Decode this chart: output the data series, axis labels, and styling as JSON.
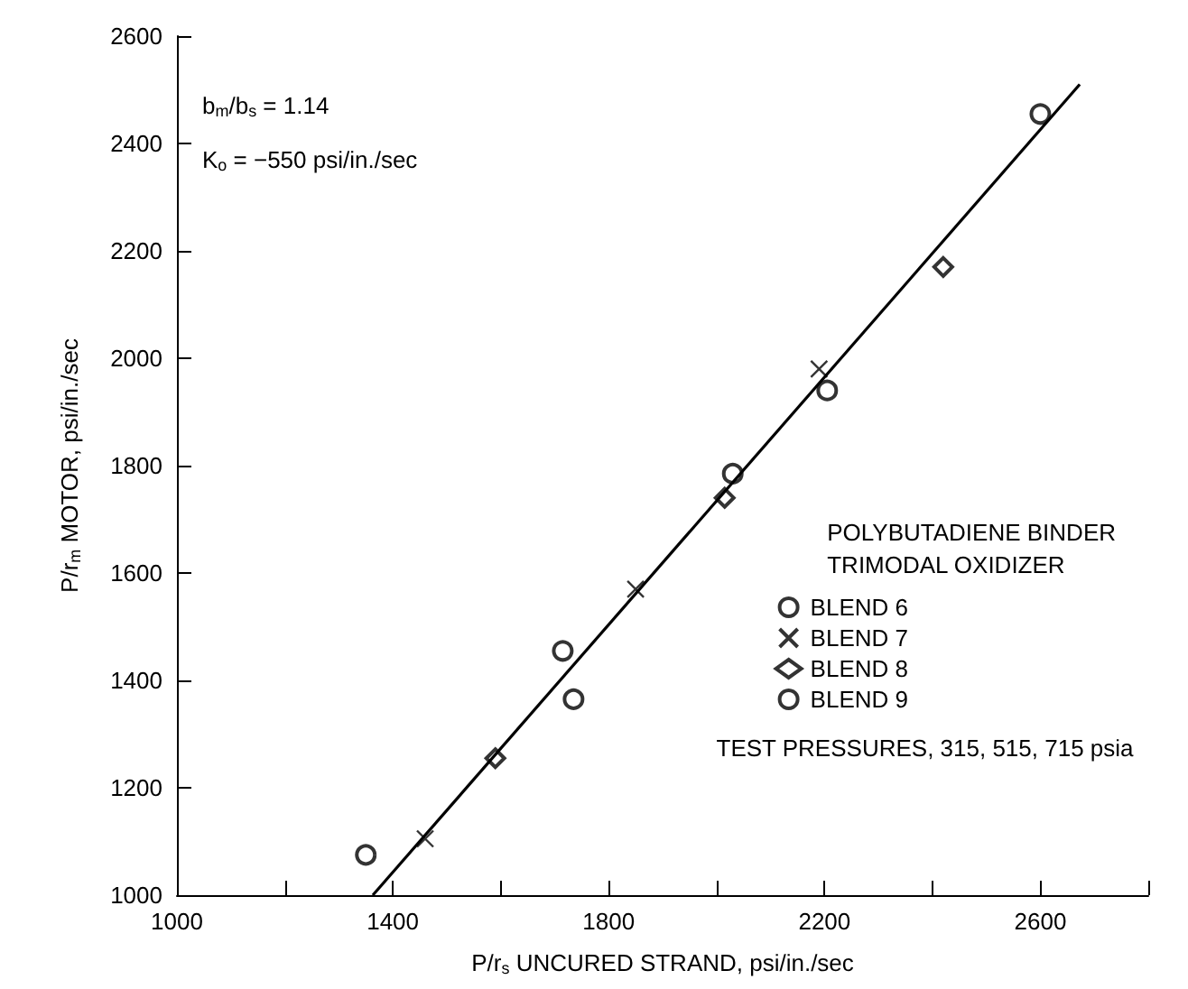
{
  "chart_data": {
    "type": "scatter",
    "xlabel": "P/r$_{s}$ UNCURED STRAND, psi/in./sec",
    "ylabel": "P/r$_{m}$ MOTOR, psi/in./sec",
    "legend_title": "POLYBUTADIENE BINDER\nTRIMODAL OXIDIZER",
    "annotations": [
      "b$_{m}$/b$_{s}$ = 1.14",
      "K$_{o}$ = −550 psi/in./sec",
      "TEST PRESSURES, 315, 515, 715 psia"
    ],
    "xlim": [
      1000,
      2800
    ],
    "xticks": [
      1000,
      {
        "value": 1200,
        "label": null
      },
      1400,
      {
        "value": 1600,
        "label": null
      },
      1800,
      {
        "value": 2000,
        "label": null
      },
      2200,
      {
        "value": 2400,
        "label": null
      },
      2600,
      {
        "value": 2800,
        "label": null
      }
    ],
    "ylim": [
      1000,
      2600
    ],
    "yticks": [
      1000,
      1200,
      1400,
      1600,
      1800,
      2000,
      2200,
      2400,
      2600
    ],
    "grid": false,
    "legend": "right",
    "series": [
      {
        "name": "BLEND 6",
        "color": "#000000",
        "marker": "circle",
        "x": [
          1350,
          1715,
          2030
        ],
        "values": [
          1075,
          1455,
          1785
        ]
      },
      {
        "name": "BLEND 7",
        "color": "#000000",
        "marker": "cross",
        "x": [
          1460,
          1850,
          2190
        ],
        "values": [
          1105,
          1570,
          1980
        ]
      },
      {
        "name": "BLEND 8",
        "color": "#000000",
        "marker": "diamond",
        "x": [
          1590,
          2015,
          2420
        ],
        "values": [
          1255,
          1740,
          2170
        ]
      },
      {
        "name": "BLEND 9",
        "color": "#000000",
        "marker": "circle",
        "x": [
          1735,
          2205,
          2600
        ],
        "values": [
          1365,
          1940,
          2455
        ]
      },
      {
        "type": "line",
        "color": "#000000",
        "marker": "none",
        "line_style": "solid",
        "x": [
          1363,
          2673
        ],
        "values": [
          1000,
          2510
        ]
      }
    ]
  }
}
